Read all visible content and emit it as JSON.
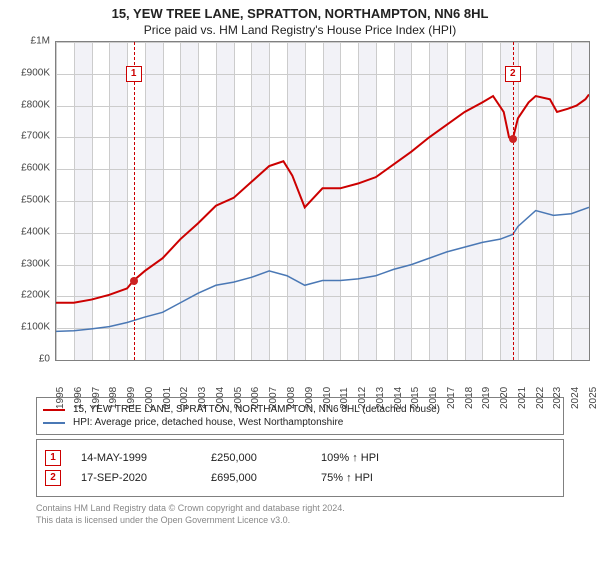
{
  "title": "15, YEW TREE LANE, SPRATTON, NORTHAMPTON, NN6 8HL",
  "subtitle": "Price paid vs. HM Land Registry's House Price Index (HPI)",
  "chart": {
    "type": "line",
    "background_color": "#ffffff",
    "grid_color": "#cccccc",
    "border_color": "#808080",
    "band_color": "#f2f2f7",
    "marker_border": "#cc0000",
    "currency_prefix": "£",
    "ylim": [
      0,
      1000000
    ],
    "ytick_step": 100000,
    "yticks": [
      "£0",
      "£100K",
      "£200K",
      "£300K",
      "£400K",
      "£500K",
      "£600K",
      "£700K",
      "£800K",
      "£900K",
      "£1M"
    ],
    "xmin": 1995,
    "xmax": 2025,
    "xticks": [
      1995,
      1996,
      1997,
      1998,
      1999,
      2000,
      2001,
      2002,
      2003,
      2004,
      2005,
      2006,
      2007,
      2008,
      2009,
      2010,
      2011,
      2012,
      2013,
      2014,
      2015,
      2016,
      2017,
      2018,
      2019,
      2020,
      2021,
      2022,
      2023,
      2024,
      2025
    ],
    "sale_markers": [
      {
        "label": "1",
        "year": 1999.37,
        "top_y": 900000
      },
      {
        "label": "2",
        "year": 2020.71,
        "top_y": 900000
      }
    ],
    "series": [
      {
        "name": "property",
        "label": "15, YEW TREE LANE, SPRATTON, NORTHAMPTON, NN6 8HL (detached house)",
        "color": "#cc0000",
        "width": 2,
        "data": [
          [
            1995,
            180000
          ],
          [
            1996,
            180000
          ],
          [
            1997,
            190000
          ],
          [
            1998,
            205000
          ],
          [
            1999,
            225000
          ],
          [
            1999.37,
            250000
          ],
          [
            2000,
            280000
          ],
          [
            2001,
            320000
          ],
          [
            2002,
            380000
          ],
          [
            2003,
            430000
          ],
          [
            2004,
            485000
          ],
          [
            2005,
            510000
          ],
          [
            2006,
            560000
          ],
          [
            2007,
            610000
          ],
          [
            2007.8,
            625000
          ],
          [
            2008.3,
            580000
          ],
          [
            2009,
            480000
          ],
          [
            2009.5,
            510000
          ],
          [
            2010,
            540000
          ],
          [
            2011,
            540000
          ],
          [
            2012,
            555000
          ],
          [
            2013,
            575000
          ],
          [
            2014,
            615000
          ],
          [
            2015,
            655000
          ],
          [
            2016,
            700000
          ],
          [
            2017,
            740000
          ],
          [
            2018,
            780000
          ],
          [
            2019,
            810000
          ],
          [
            2019.6,
            830000
          ],
          [
            2020.2,
            780000
          ],
          [
            2020.5,
            700000
          ],
          [
            2020.71,
            695000
          ],
          [
            2021,
            760000
          ],
          [
            2021.6,
            810000
          ],
          [
            2022,
            830000
          ],
          [
            2022.8,
            820000
          ],
          [
            2023.2,
            780000
          ],
          [
            2023.8,
            790000
          ],
          [
            2024.3,
            800000
          ],
          [
            2024.8,
            820000
          ],
          [
            2025,
            835000
          ]
        ]
      },
      {
        "name": "hpi",
        "label": "HPI: Average price, detached house, West Northamptonshire",
        "color": "#4a78b5",
        "width": 1.5,
        "data": [
          [
            1995,
            90000
          ],
          [
            1996,
            92000
          ],
          [
            1997,
            98000
          ],
          [
            1998,
            105000
          ],
          [
            1999,
            118000
          ],
          [
            2000,
            135000
          ],
          [
            2001,
            150000
          ],
          [
            2002,
            180000
          ],
          [
            2003,
            210000
          ],
          [
            2004,
            235000
          ],
          [
            2005,
            245000
          ],
          [
            2006,
            260000
          ],
          [
            2007,
            280000
          ],
          [
            2008,
            265000
          ],
          [
            2009,
            235000
          ],
          [
            2010,
            250000
          ],
          [
            2011,
            250000
          ],
          [
            2012,
            255000
          ],
          [
            2013,
            265000
          ],
          [
            2014,
            285000
          ],
          [
            2015,
            300000
          ],
          [
            2016,
            320000
          ],
          [
            2017,
            340000
          ],
          [
            2018,
            355000
          ],
          [
            2019,
            370000
          ],
          [
            2020,
            380000
          ],
          [
            2020.71,
            395000
          ],
          [
            2021,
            420000
          ],
          [
            2022,
            470000
          ],
          [
            2023,
            455000
          ],
          [
            2024,
            460000
          ],
          [
            2025,
            480000
          ]
        ]
      }
    ],
    "sale_dots": [
      {
        "year": 1999.37,
        "value": 250000
      },
      {
        "year": 2020.71,
        "value": 695000
      }
    ]
  },
  "legend": {
    "items": [
      {
        "color": "#cc0000",
        "label": "15, YEW TREE LANE, SPRATTON, NORTHAMPTON, NN6 8HL (detached house)"
      },
      {
        "color": "#4a78b5",
        "label": "HPI: Average price, detached house, West Northamptonshire"
      }
    ]
  },
  "sales": [
    {
      "marker": "1",
      "date": "14-MAY-1999",
      "price": "£250,000",
      "pct": "109% ↑ HPI"
    },
    {
      "marker": "2",
      "date": "17-SEP-2020",
      "price": "£695,000",
      "pct": "75% ↑ HPI"
    }
  ],
  "footnote_l1": "Contains HM Land Registry data © Crown copyright and database right 2024.",
  "footnote_l2": "This data is licensed under the Open Government Licence v3.0."
}
